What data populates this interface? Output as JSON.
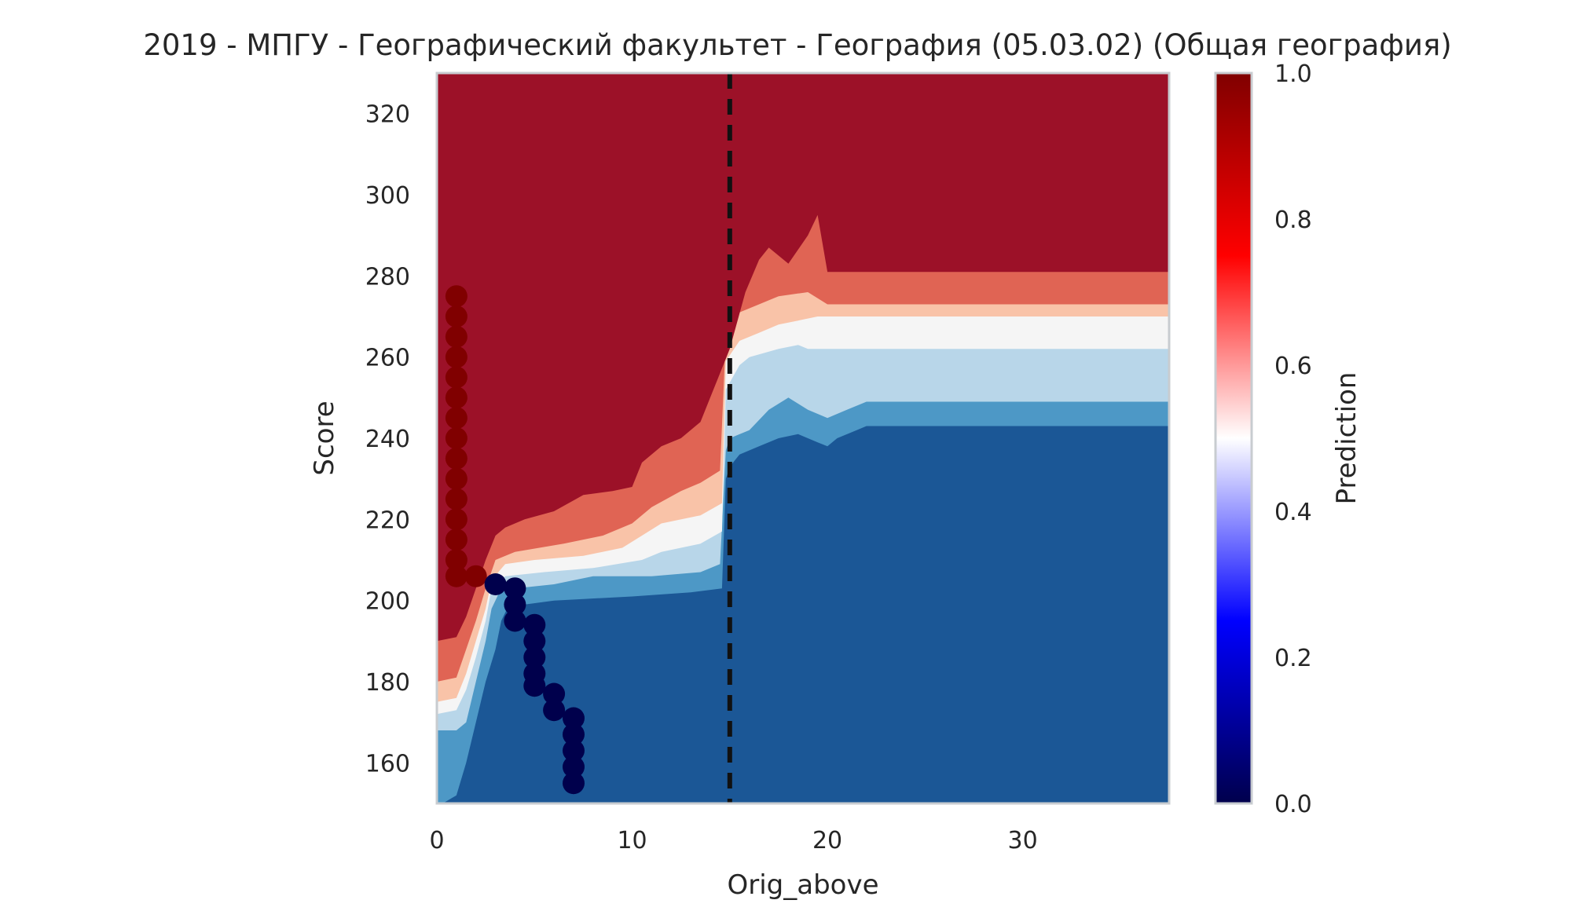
{
  "chart_data": {
    "type": "heatmap",
    "title": "2019 - МПГУ - Географический факультет - География (05.03.02) (Общая география)",
    "xlabel": "Orig_above",
    "ylabel": "Score",
    "xlim": [
      0,
      37.5
    ],
    "ylim": [
      150,
      330
    ],
    "x_ticks": [
      0,
      10,
      20,
      30
    ],
    "y_ticks": [
      160,
      180,
      200,
      220,
      240,
      260,
      280,
      300,
      320
    ],
    "grid": false,
    "colorbar": {
      "label": "Prediction",
      "range": [
        0,
        1
      ],
      "ticks": [
        0.0,
        0.2,
        0.4,
        0.6,
        0.8,
        1.0
      ],
      "tick_labels": [
        "0.0",
        "0.2",
        "0.4",
        "0.6",
        "0.8",
        "1.0"
      ],
      "colormap": "seismic",
      "stops": [
        {
          "v": 0.0,
          "color": "#00004c"
        },
        {
          "v": 0.25,
          "color": "#0000ff"
        },
        {
          "v": 0.5,
          "color": "#ffffff"
        },
        {
          "v": 0.75,
          "color": "#ff0000"
        },
        {
          "v": 1.0,
          "color": "#800000"
        }
      ]
    },
    "contour_levels": [
      {
        "level": "0.0-0.2",
        "color": "#1b5796"
      },
      {
        "level": "0.2-0.3",
        "color": "#4d98c6"
      },
      {
        "level": "0.3-0.4",
        "color": "#b8d6e9"
      },
      {
        "level": "0.4-0.5",
        "color": "#f5f5f5"
      },
      {
        "level": "0.5-0.6",
        "color": "#f9c3a8"
      },
      {
        "level": "0.6-0.8",
        "color": "#e06454"
      },
      {
        "level": "0.8-1.0",
        "color": "#9c1128"
      }
    ],
    "boundaries": [
      {
        "threshold": "0.2",
        "points": [
          [
            0.3,
            150
          ],
          [
            1.0,
            152
          ],
          [
            1.5,
            160
          ],
          [
            2.0,
            170
          ],
          [
            2.5,
            180
          ],
          [
            3.0,
            188
          ],
          [
            3.3,
            195
          ],
          [
            3.6,
            198
          ],
          [
            4.5,
            199
          ],
          [
            6.0,
            200
          ],
          [
            10.0,
            201
          ],
          [
            13.0,
            202
          ],
          [
            14.6,
            203
          ],
          [
            14.8,
            230
          ],
          [
            15.0,
            233
          ],
          [
            15.5,
            236
          ],
          [
            16.5,
            238
          ],
          [
            17.5,
            240
          ],
          [
            18.5,
            241
          ],
          [
            19.5,
            239
          ],
          [
            20.0,
            238
          ],
          [
            20.5,
            240
          ],
          [
            21.5,
            242
          ],
          [
            22.0,
            243
          ],
          [
            37.5,
            243
          ]
        ]
      },
      {
        "threshold": "0.3",
        "points": [
          [
            0,
            168
          ],
          [
            1.0,
            168
          ],
          [
            1.5,
            170
          ],
          [
            2.0,
            180
          ],
          [
            2.5,
            190
          ],
          [
            2.8,
            198
          ],
          [
            3.2,
            202
          ],
          [
            4.0,
            203
          ],
          [
            6.0,
            204
          ],
          [
            8.0,
            206
          ],
          [
            11.0,
            206
          ],
          [
            13.5,
            207
          ],
          [
            14.5,
            209
          ],
          [
            14.8,
            237
          ],
          [
            15.0,
            240
          ],
          [
            16.0,
            242
          ],
          [
            17.0,
            247
          ],
          [
            18.0,
            250
          ],
          [
            19.0,
            247
          ],
          [
            20.0,
            245
          ],
          [
            21.0,
            247
          ],
          [
            22.0,
            249
          ],
          [
            37.5,
            249
          ]
        ]
      },
      {
        "threshold": "0.4",
        "points": [
          [
            0,
            172
          ],
          [
            1.0,
            173
          ],
          [
            1.5,
            178
          ],
          [
            2.0,
            186
          ],
          [
            2.5,
            195
          ],
          [
            2.8,
            203
          ],
          [
            3.5,
            206
          ],
          [
            5.5,
            207
          ],
          [
            8.0,
            208
          ],
          [
            10.5,
            210
          ],
          [
            11.5,
            212
          ],
          [
            13.5,
            214
          ],
          [
            14.6,
            217
          ],
          [
            14.8,
            252
          ],
          [
            15.5,
            258
          ],
          [
            16.0,
            260
          ],
          [
            17.5,
            262
          ],
          [
            18.5,
            263
          ],
          [
            19.0,
            262
          ],
          [
            20.0,
            262
          ],
          [
            37.5,
            262
          ]
        ]
      },
      {
        "threshold": "0.5",
        "points": [
          [
            0,
            175
          ],
          [
            1.0,
            176
          ],
          [
            1.5,
            182
          ],
          [
            2.0,
            190
          ],
          [
            2.5,
            198
          ],
          [
            2.8,
            205
          ],
          [
            3.5,
            209
          ],
          [
            5.0,
            210
          ],
          [
            7.5,
            211
          ],
          [
            9.5,
            213
          ],
          [
            10.5,
            216
          ],
          [
            11.5,
            219
          ],
          [
            13.5,
            221
          ],
          [
            14.6,
            224
          ],
          [
            14.8,
            259
          ],
          [
            15.5,
            264
          ],
          [
            16.5,
            266
          ],
          [
            17.5,
            268
          ],
          [
            18.5,
            269
          ],
          [
            19.5,
            270
          ],
          [
            37.5,
            270
          ]
        ]
      },
      {
        "threshold": "0.6",
        "points": [
          [
            0,
            180
          ],
          [
            1.0,
            181
          ],
          [
            1.5,
            188
          ],
          [
            2.0,
            195
          ],
          [
            2.5,
            203
          ],
          [
            3.0,
            210
          ],
          [
            4.0,
            212
          ],
          [
            6.5,
            214
          ],
          [
            8.5,
            216
          ],
          [
            10.0,
            219
          ],
          [
            11.0,
            223
          ],
          [
            12.5,
            227
          ],
          [
            13.5,
            229
          ],
          [
            14.5,
            232
          ],
          [
            14.8,
            265
          ],
          [
            15.5,
            271
          ],
          [
            16.5,
            273
          ],
          [
            17.5,
            275
          ],
          [
            19.0,
            276
          ],
          [
            20.0,
            273
          ],
          [
            37.5,
            273
          ]
        ]
      },
      {
        "threshold": "0.8",
        "points": [
          [
            0,
            190
          ],
          [
            1.0,
            191
          ],
          [
            1.5,
            196
          ],
          [
            2.0,
            203
          ],
          [
            2.5,
            210
          ],
          [
            3.0,
            216
          ],
          [
            3.5,
            218
          ],
          [
            4.5,
            220
          ],
          [
            6.0,
            222
          ],
          [
            7.5,
            226
          ],
          [
            9.0,
            227
          ],
          [
            10.0,
            228
          ],
          [
            10.5,
            234
          ],
          [
            11.5,
            238
          ],
          [
            12.5,
            240
          ],
          [
            13.5,
            244
          ],
          [
            14.0,
            250
          ],
          [
            14.5,
            256
          ],
          [
            15.0,
            262
          ],
          [
            15.8,
            276
          ],
          [
            16.5,
            284
          ],
          [
            17.0,
            287
          ],
          [
            18.0,
            283
          ],
          [
            19.0,
            290
          ],
          [
            19.5,
            295
          ],
          [
            20.0,
            281
          ],
          [
            22.0,
            281
          ],
          [
            37.5,
            281
          ]
        ]
      }
    ],
    "threshold_line": {
      "x": 15,
      "style": "dashed",
      "color": "#111111"
    },
    "scatter_series": [
      {
        "color": "#800000",
        "points": [
          [
            1,
            275
          ],
          [
            1,
            270
          ],
          [
            1,
            265
          ],
          [
            1,
            260
          ],
          [
            1,
            255
          ],
          [
            1,
            250
          ],
          [
            1,
            245
          ],
          [
            1,
            240
          ],
          [
            1,
            235
          ],
          [
            1,
            230
          ],
          [
            1,
            225
          ],
          [
            1,
            220
          ],
          [
            1,
            215
          ],
          [
            1,
            210
          ],
          [
            1,
            206
          ],
          [
            2,
            206
          ]
        ]
      },
      {
        "color": "#00004c",
        "points": [
          [
            3,
            204
          ],
          [
            4,
            203
          ],
          [
            4,
            199
          ],
          [
            4,
            195
          ],
          [
            5,
            194
          ],
          [
            5,
            190
          ],
          [
            5,
            186
          ],
          [
            5,
            182
          ],
          [
            5,
            179
          ],
          [
            6,
            177
          ],
          [
            6,
            173
          ],
          [
            7,
            171
          ],
          [
            7,
            167
          ],
          [
            7,
            163
          ],
          [
            7,
            159
          ],
          [
            7,
            155
          ]
        ]
      }
    ]
  }
}
